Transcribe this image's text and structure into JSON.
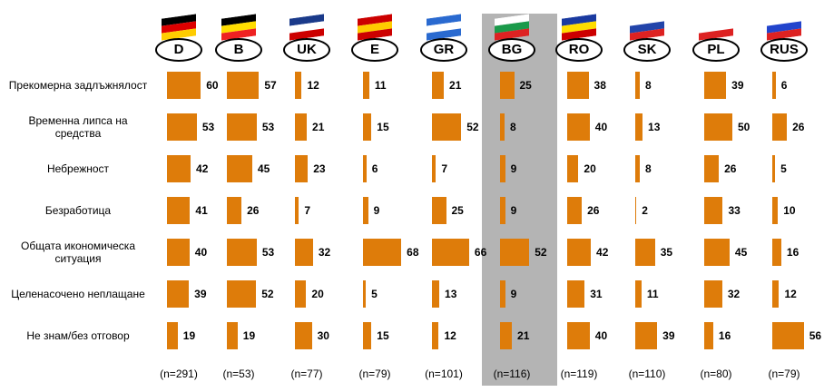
{
  "chart_data": {
    "type": "bar",
    "orientation": "horizontal",
    "color": "#de7c0a",
    "highlight": "BG",
    "categories": [
      "Прекомерна задлъжнялост",
      "Временна липса на средства",
      "Небрежност",
      "Безработица",
      "Общата икономическа ситуация",
      "Целенасочено неплащане",
      "Не знам/без отговор"
    ],
    "series": [
      {
        "name": "D",
        "n": "(n=291)",
        "values": [
          60,
          53,
          42,
          41,
          40,
          39,
          19
        ]
      },
      {
        "name": "B",
        "n": "(n=53)",
        "values": [
          57,
          53,
          45,
          26,
          53,
          52,
          19
        ]
      },
      {
        "name": "UK",
        "n": "(n=77)",
        "values": [
          12,
          21,
          23,
          7,
          32,
          20,
          30
        ]
      },
      {
        "name": "E",
        "n": "(n=79)",
        "values": [
          11,
          15,
          6,
          9,
          68,
          5,
          15
        ]
      },
      {
        "name": "GR",
        "n": "(n=101)",
        "values": [
          21,
          52,
          7,
          25,
          66,
          13,
          12
        ]
      },
      {
        "name": "BG",
        "n": "(n=116)",
        "values": [
          25,
          8,
          9,
          9,
          52,
          9,
          21
        ]
      },
      {
        "name": "RO",
        "n": "(n=119)",
        "values": [
          38,
          40,
          20,
          26,
          42,
          31,
          40
        ]
      },
      {
        "name": "SK",
        "n": "(n=110)",
        "values": [
          8,
          13,
          8,
          2,
          35,
          11,
          39
        ]
      },
      {
        "name": "PL",
        "n": "(n=80)",
        "values": [
          39,
          50,
          26,
          33,
          45,
          32,
          16
        ]
      },
      {
        "name": "RUS",
        "n": "(n=79)",
        "values": [
          6,
          26,
          5,
          10,
          16,
          12,
          56
        ]
      }
    ]
  }
}
